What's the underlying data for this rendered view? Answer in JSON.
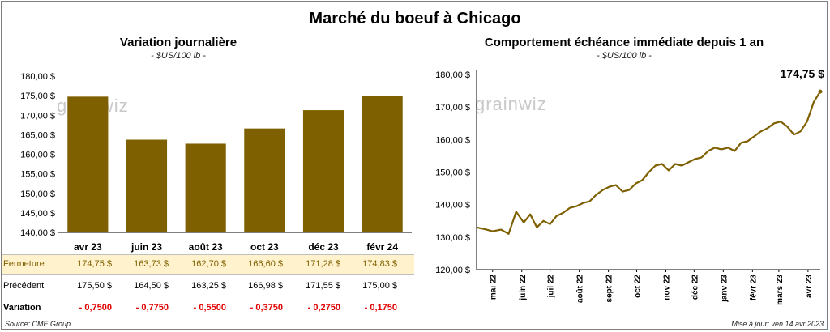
{
  "title": "Marché du boeuf à Chicago",
  "left": {
    "title": "Variation  journalière",
    "unit": "- $US/100 lb -"
  },
  "right": {
    "title": "Comportement  échéance immédiate depuis 1 an",
    "unit": "- $US/100 lb -",
    "last_value_label": "174,75 $"
  },
  "watermark": "grainwiz",
  "table": {
    "rows": [
      {
        "label": "Fermeture",
        "cells": [
          "174,75  $",
          "163,73  $",
          "162,70  $",
          "166,60  $",
          "171,28  $",
          "174,83  $"
        ]
      },
      {
        "label": "Précédent",
        "cells": [
          "175,50  $",
          "164,50  $",
          "163,25  $",
          "166,98  $",
          "171,55  $",
          "175,00  $"
        ]
      },
      {
        "label": "Variation",
        "cells": [
          "- 0,7500",
          "- 0,7750",
          "- 0,5500",
          "- 0,3750",
          "- 0,2750",
          "- 0,1750"
        ]
      }
    ]
  },
  "footer": {
    "source": "Source: CME Group",
    "updated": "Mise à jour: ven 14 avr 2023"
  },
  "colors": {
    "bar": "#7f6000",
    "line": "#7f6000",
    "highlight": "#fff2cc",
    "negative": "#e00000"
  },
  "chart_data": [
    {
      "type": "bar",
      "title": "Variation  journalière",
      "subtitle": "- $US/100 lb -",
      "categories": [
        "avr 23",
        "juin 23",
        "août 23",
        "oct 23",
        "déc 23",
        "févr 24"
      ],
      "values": [
        174.75,
        163.73,
        162.7,
        166.6,
        171.28,
        174.83
      ],
      "ylim": [
        140,
        180
      ],
      "yticks": [
        "140,00 $",
        "145,00 $",
        "150,00 $",
        "155,00 $",
        "160,00 $",
        "165,00 $",
        "170,00 $",
        "175,00 $",
        "180,00 $"
      ],
      "grid": false
    },
    {
      "type": "line",
      "title": "Comportement  échéance immédiate depuis 1 an",
      "subtitle": "- $US/100 lb -",
      "xticks": [
        "mai 22",
        "juin 22",
        "juil 22",
        "août 22",
        "sept 22",
        "oct 22",
        "nov 22",
        "déc 22",
        "janv 23",
        "févr 23",
        "mars 23",
        "avr 23"
      ],
      "ylim": [
        120,
        180
      ],
      "yticks": [
        "120,00 $",
        "130,00 $",
        "140,00 $",
        "150,00 $",
        "160,00 $",
        "170,00 $",
        "180,00 $"
      ],
      "x": [
        "2022-04-14",
        "2022-04-22",
        "2022-05-01",
        "2022-05-10",
        "2022-05-18",
        "2022-05-26",
        "2022-06-03",
        "2022-06-10",
        "2022-06-17",
        "2022-06-24",
        "2022-07-01",
        "2022-07-08",
        "2022-07-15",
        "2022-07-22",
        "2022-07-29",
        "2022-08-05",
        "2022-08-12",
        "2022-08-19",
        "2022-08-26",
        "2022-09-02",
        "2022-09-09",
        "2022-09-16",
        "2022-09-23",
        "2022-09-30",
        "2022-10-07",
        "2022-10-14",
        "2022-10-21",
        "2022-10-28",
        "2022-11-04",
        "2022-11-11",
        "2022-11-18",
        "2022-11-25",
        "2022-12-02",
        "2022-12-09",
        "2022-12-16",
        "2022-12-23",
        "2022-12-30",
        "2023-01-06",
        "2023-01-13",
        "2023-01-20",
        "2023-01-27",
        "2023-02-03",
        "2023-02-10",
        "2023-02-17",
        "2023-02-24",
        "2023-03-03",
        "2023-03-10",
        "2023-03-17",
        "2023-03-24",
        "2023-03-31",
        "2023-04-07",
        "2023-04-14"
      ],
      "series": [
        {
          "values": [
            133.0,
            132.5,
            131.8,
            132.3,
            131.0,
            137.8,
            134.5,
            137.0,
            133.0,
            135.0,
            134.0,
            136.5,
            137.5,
            139.0,
            139.5,
            140.5,
            141.0,
            143.0,
            144.5,
            145.5,
            146.0,
            144.0,
            144.5,
            146.5,
            147.5,
            150.0,
            152.0,
            152.5,
            150.5,
            152.5,
            152.0,
            153.0,
            154.0,
            154.5,
            156.5,
            157.5,
            157.0,
            157.5,
            156.5,
            159.0,
            159.5,
            161.0,
            162.5,
            163.5,
            165.0,
            165.5,
            164.0,
            161.5,
            162.5,
            165.5,
            171.5,
            174.75
          ]
        }
      ]
    }
  ]
}
